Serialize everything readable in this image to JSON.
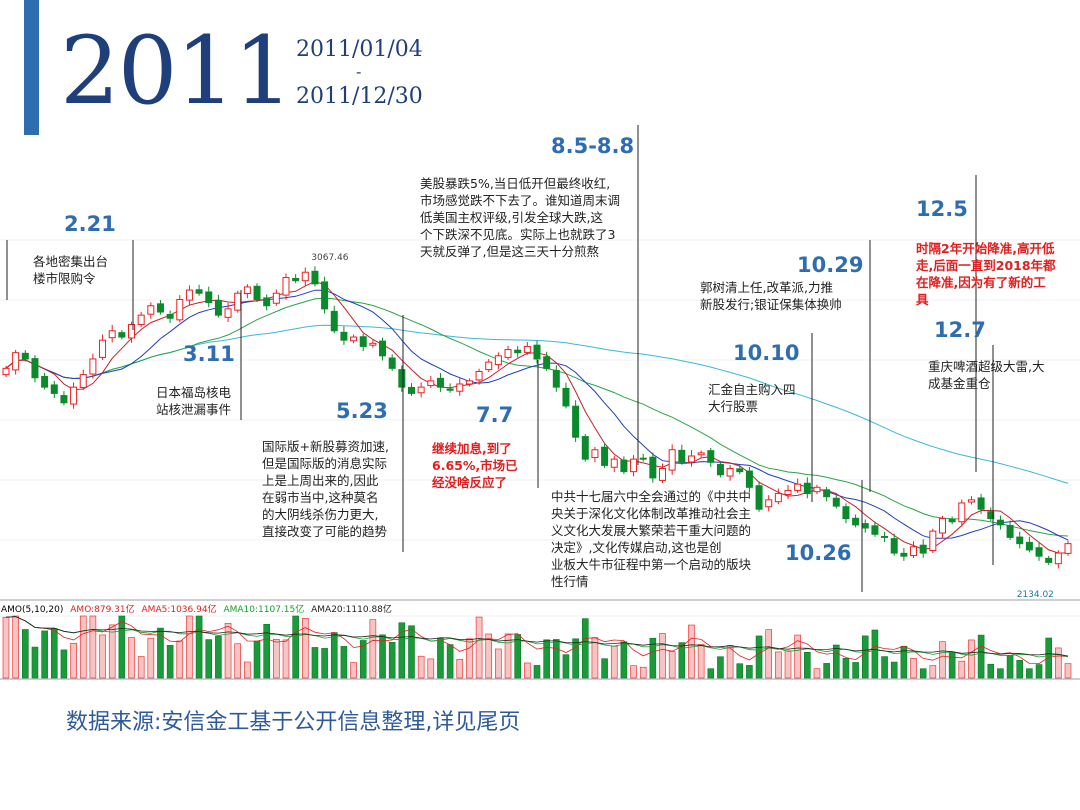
{
  "header": {
    "year": "2011",
    "start_date": "2011/01/04",
    "separator": "-",
    "end_date": "2011/12/30"
  },
  "colors": {
    "accent": "#2e6db2",
    "year_text": "#1f3f7a",
    "annotation_date": "#2e6db2",
    "annotation_red": "#e02020",
    "candle_up": "#ee2020",
    "candle_down": "#0a8a2a",
    "ma5": "#c8202a",
    "ma10": "#1f3fbf",
    "ma20": "#2aa54a",
    "ma60": "#3cb8d8",
    "footer": "#2e5a9c"
  },
  "chart_data": {
    "type": "candlestick",
    "period_label": "2011/01/04 - 2011/12/30",
    "max_label": "3067.46",
    "min_label": "2134.02",
    "closes": [
      2760,
      2810,
      2790,
      2730,
      2700,
      2680,
      2650,
      2700,
      2740,
      2790,
      2850,
      2880,
      2860,
      2900,
      2930,
      2960,
      2940,
      2920,
      2980,
      3010,
      3000,
      2970,
      2930,
      2950,
      3000,
      3020,
      2980,
      2960,
      3000,
      3050,
      3040,
      3067,
      3030,
      2950,
      2880,
      2850,
      2860,
      2830,
      2840,
      2800,
      2760,
      2700,
      2680,
      2700,
      2720,
      2700,
      2690,
      2710,
      2720,
      2750,
      2780,
      2800,
      2820,
      2810,
      2830,
      2790,
      2760,
      2700,
      2640,
      2540,
      2470,
      2500,
      2450,
      2470,
      2430,
      2470,
      2470,
      2410,
      2440,
      2500,
      2460,
      2480,
      2490,
      2460,
      2420,
      2440,
      2430,
      2380,
      2310,
      2340,
      2360,
      2370,
      2390,
      2360,
      2380,
      2350,
      2320,
      2280,
      2260,
      2250,
      2230,
      2220,
      2170,
      2160,
      2190,
      2170,
      2240,
      2280,
      2270,
      2330,
      2340,
      2310,
      2280,
      2260,
      2220,
      2200,
      2180,
      2160,
      2140,
      2170,
      2200
    ],
    "volume": {
      "legend_title": "AMO(5,10,20)",
      "series": [
        {
          "name": "AMO:879.31亿",
          "color": "#e02020"
        },
        {
          "name": "AMA5:1036.94亿",
          "color": "#e02020"
        },
        {
          "name": "AMA10:1107.15亿",
          "color": "#16a02e"
        },
        {
          "name": "AMA20:1110.88亿",
          "color": "#222222"
        }
      ]
    }
  },
  "annotations": [
    {
      "date": "2.21",
      "text": [
        "各地密集出台",
        "楼市限购令"
      ],
      "style": "normal"
    },
    {
      "date": "3.11",
      "text": [
        "日本福岛核电",
        "站核泄漏事件"
      ],
      "style": "normal"
    },
    {
      "date": "5.23",
      "text": [
        "国际版+新股募资加速,",
        "但是国际版的消息实际",
        "上是上周出来的,因此",
        "在弱市当中,这种莫名",
        "的大阴线杀伤力更大,",
        "直接改变了可能的趋势"
      ],
      "style": "normal"
    },
    {
      "date": "7.7",
      "text": [
        "继续加息,到了",
        "6.65%,市场已",
        "经没啥反应了"
      ],
      "style": "red"
    },
    {
      "date": "8.5-8.8",
      "text": [
        "美股暴跌5%,当日低开但最终收红,",
        "市场感觉跌不下去了。谁知道周末调",
        "低美国主权评级,引发全球大跌,这",
        "个下跌深不见底。实际上也就跌了3",
        "天就反弹了,但是这三天十分煎熬"
      ],
      "style": "normal"
    },
    {
      "date": "10.10",
      "text": [
        "汇金自主购入四",
        "大行股票"
      ],
      "style": "normal"
    },
    {
      "date": "10.29",
      "text": [
        "郭树清上任,改革派,力推",
        "新股发行;银证保集体换帅"
      ],
      "style": "normal"
    },
    {
      "date": "10.26",
      "text": [
        "中共十七届六中全会通过的《中共中",
        "央关于深化文化体制改革推动社会主",
        "义文化大发展大繁荣若干重大问题的",
        "决定》,文化传媒启动,这也是创",
        "业板大牛市征程中第一个启动的版块",
        "性行情"
      ],
      "style": "normal"
    },
    {
      "date": "12.5",
      "text": [
        "时隔2年开始降准,高开低",
        "走,后面一直到2018年都",
        "在降准,因为有了新的工",
        "具"
      ],
      "style": "red"
    },
    {
      "date": "12.7",
      "text": [
        "重庆啤酒超级大雷,大",
        "成基金重仓"
      ],
      "style": "normal"
    }
  ],
  "footer": {
    "text": "数据来源:安信金工基于公开信息整理,详见尾页"
  }
}
